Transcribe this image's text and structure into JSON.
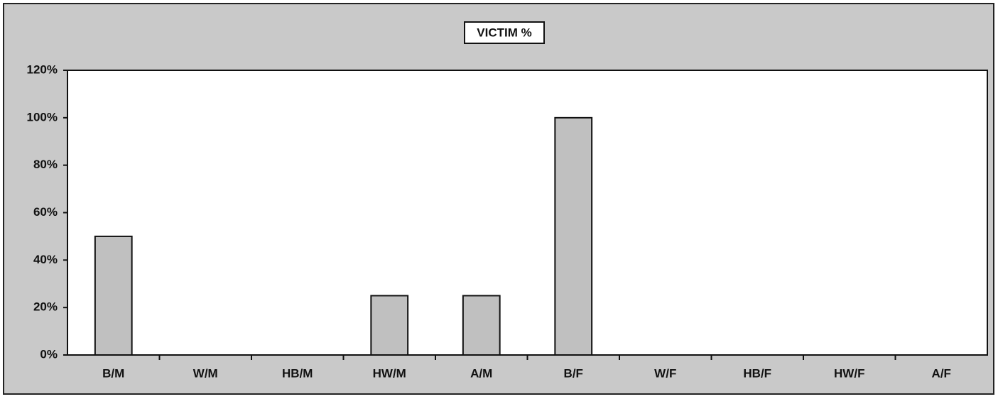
{
  "chart_data": {
    "type": "bar",
    "title": "VICTIM %",
    "categories": [
      "B/M",
      "W/M",
      "HB/M",
      "HW/M",
      "A/M",
      "B/F",
      "W/F",
      "HB/F",
      "HW/F",
      "A/F"
    ],
    "values": [
      50,
      0,
      0,
      25,
      25,
      100,
      0,
      0,
      0,
      0
    ],
    "color": "#c0c0c0",
    "ylim": [
      0,
      120
    ],
    "yticks": [
      {
        "value": 0,
        "label": "0%"
      },
      {
        "value": 20,
        "label": "20%"
      },
      {
        "value": 40,
        "label": "40%"
      },
      {
        "value": 60,
        "label": "60%"
      },
      {
        "value": 80,
        "label": "80%"
      },
      {
        "value": 100,
        "label": "100%"
      },
      {
        "value": 120,
        "label": "120%"
      }
    ],
    "grid": false
  }
}
